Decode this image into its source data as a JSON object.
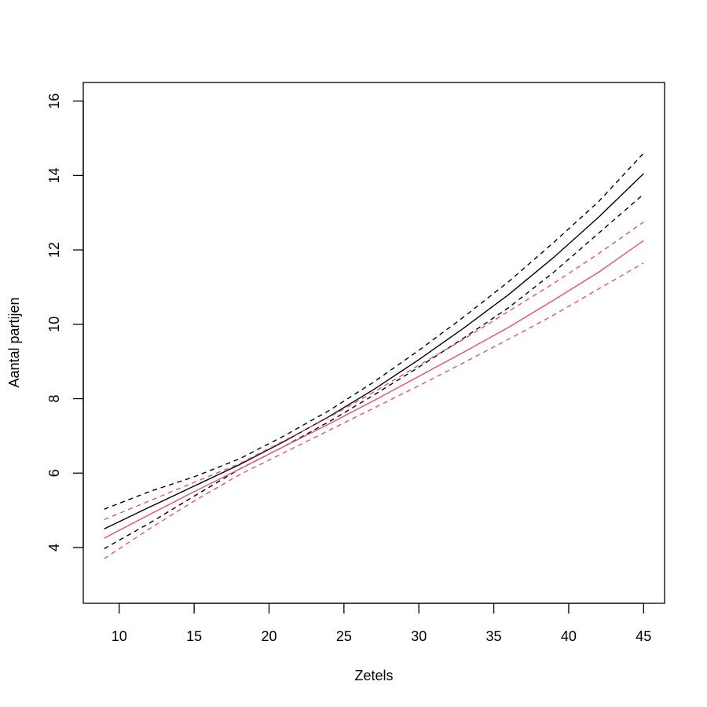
{
  "chart_data": {
    "type": "line",
    "xlabel": "Zetels",
    "ylabel": "Aantal partijen",
    "xlim": [
      7.6,
      46.4
    ],
    "ylim": [
      2.5,
      16.5
    ],
    "xticks": [
      10,
      15,
      20,
      25,
      30,
      35,
      40,
      45
    ],
    "yticks": [
      4,
      6,
      8,
      10,
      12,
      14,
      16
    ],
    "grid": false,
    "colors": {
      "black": "#000000",
      "red": "#DF536B"
    },
    "x": [
      9,
      12,
      15,
      18,
      21,
      24,
      27,
      30,
      33,
      36,
      39,
      42,
      45
    ],
    "series": [
      {
        "color": "#000000",
        "dash": false,
        "values": [
          4.5,
          5.08,
          5.65,
          6.22,
          6.85,
          7.52,
          8.25,
          9.05,
          9.9,
          10.8,
          11.8,
          12.88,
          14.05
        ]
      },
      {
        "color": "#000000",
        "dash": true,
        "values": [
          5.03,
          5.5,
          5.9,
          6.38,
          7.0,
          7.68,
          8.45,
          9.3,
          10.2,
          11.15,
          12.2,
          13.3,
          14.6
        ]
      },
      {
        "color": "#000000",
        "dash": true,
        "values": [
          3.97,
          4.65,
          5.38,
          6.1,
          6.72,
          7.38,
          8.1,
          8.85,
          9.63,
          10.45,
          11.4,
          12.45,
          13.5
        ]
      },
      {
        "color": "#DF536B",
        "dash": false,
        "values": [
          4.25,
          4.88,
          5.5,
          6.1,
          6.72,
          7.32,
          7.95,
          8.6,
          9.25,
          9.92,
          10.65,
          11.4,
          12.25
        ]
      },
      {
        "color": "#DF536B",
        "dash": true,
        "values": [
          4.75,
          5.25,
          5.75,
          6.25,
          6.87,
          7.5,
          8.18,
          8.9,
          9.6,
          10.35,
          11.1,
          11.9,
          12.75
        ]
      },
      {
        "color": "#DF536B",
        "dash": true,
        "values": [
          3.7,
          4.5,
          5.25,
          5.95,
          6.55,
          7.15,
          7.75,
          8.35,
          8.97,
          9.6,
          10.25,
          10.95,
          11.65
        ]
      }
    ]
  }
}
